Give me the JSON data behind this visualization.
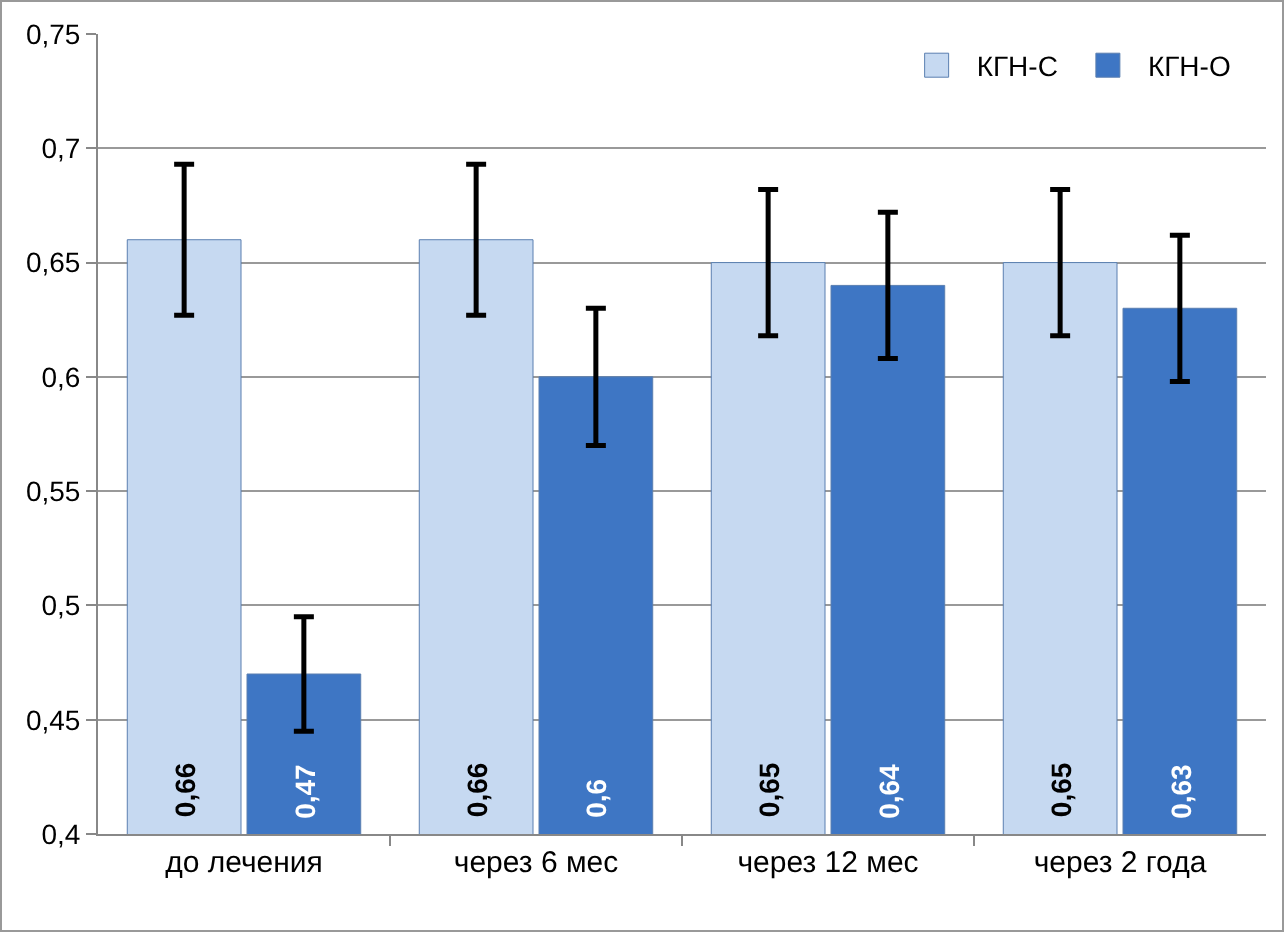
{
  "chart_data": {
    "type": "bar",
    "categories": [
      "до лечения",
      "через 6 мес",
      "через 12 мес",
      "через 2 года"
    ],
    "series": [
      {
        "name": "КГН-С",
        "color": "#c6d9f1",
        "values": [
          0.66,
          0.66,
          0.65,
          0.65
        ],
        "errors": [
          0.033,
          0.033,
          0.032,
          0.032
        ],
        "value_labels": [
          "0,66",
          "0,66",
          "0,65",
          "0,65"
        ]
      },
      {
        "name": "КГН-О",
        "color": "#3e76c4",
        "values": [
          0.47,
          0.6,
          0.64,
          0.63
        ],
        "errors": [
          0.025,
          0.03,
          0.032,
          0.032
        ],
        "value_labels": [
          "0,47",
          "0,6",
          "0,64",
          "0,63"
        ]
      }
    ],
    "ylim": [
      0.4,
      0.75
    ],
    "yticks": [
      {
        "value": 0.4,
        "label": "0,4"
      },
      {
        "value": 0.45,
        "label": "0,45"
      },
      {
        "value": 0.5,
        "label": "0,5"
      },
      {
        "value": 0.55,
        "label": "0,55"
      },
      {
        "value": 0.6,
        "label": "0,6"
      },
      {
        "value": 0.65,
        "label": "0,65"
      },
      {
        "value": 0.7,
        "label": "0,7"
      },
      {
        "value": 0.75,
        "label": "0,75"
      }
    ],
    "grid": true,
    "legend": "top right"
  }
}
